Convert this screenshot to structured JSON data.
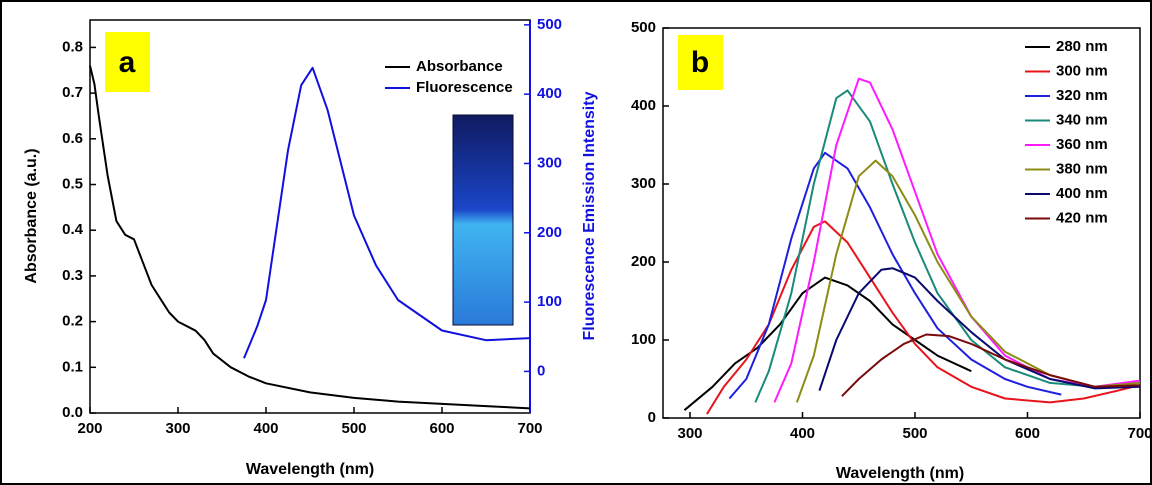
{
  "chart_data": [
    {
      "type": "line",
      "panel_label": "a",
      "xlabel": "Wavelength (nm)",
      "ylabel": "Absorbance (a.u.)",
      "y2label": "Fluorescence Emission Intensity",
      "xlim": [
        200,
        700
      ],
      "xticks": [
        200,
        300,
        400,
        500,
        600,
        700
      ],
      "ylim": [
        0,
        0.86
      ],
      "yticks": [
        {
          "value": 0,
          "label": "0.0"
        },
        0.1,
        0.2,
        0.3,
        0.4,
        0.5,
        0.6,
        0.7,
        0.8
      ],
      "y2lim": [
        -60,
        507
      ],
      "y2ticks": [
        0,
        100,
        200,
        300,
        400,
        500
      ],
      "legend": "upper right",
      "series": [
        {
          "name": "Absorbance",
          "color": "#000000",
          "x": [
            200,
            205,
            210,
            220,
            230,
            240,
            250,
            260,
            270,
            280,
            290,
            300,
            320,
            330,
            340,
            360,
            380,
            400,
            450,
            500,
            550,
            600,
            650,
            700
          ],
          "values": [
            0.76,
            0.72,
            0.65,
            0.52,
            0.42,
            0.39,
            0.38,
            0.33,
            0.28,
            0.25,
            0.22,
            0.2,
            0.18,
            0.16,
            0.13,
            0.1,
            0.08,
            0.065,
            0.045,
            0.033,
            0.025,
            0.02,
            0.015,
            0.01
          ]
        },
        {
          "name": "Fluorescence",
          "color": "#1010e0",
          "axis": "y2",
          "x": [
            375,
            390,
            400,
            425,
            440,
            453,
            470,
            500,
            525,
            550,
            600,
            650,
            700
          ],
          "values": [
            19,
            65,
            103,
            319,
            413,
            438,
            377,
            225,
            153,
            103,
            59,
            45,
            48
          ]
        }
      ]
    },
    {
      "type": "line",
      "panel_label": "b",
      "xlabel": "Wavelength (nm)",
      "xlim": [
        276,
        700
      ],
      "xticks": [
        300,
        400,
        500,
        600,
        700
      ],
      "ylim": [
        0,
        500
      ],
      "yticks": [
        0,
        100,
        200,
        300,
        400,
        500
      ],
      "legend": "upper right",
      "series": [
        {
          "name": "280 nm",
          "color": "#000000",
          "x": [
            295,
            320,
            340,
            360,
            380,
            400,
            420,
            440,
            460,
            480,
            500,
            520,
            550
          ],
          "values": [
            10,
            40,
            70,
            90,
            120,
            160,
            180,
            170,
            150,
            120,
            100,
            80,
            60
          ]
        },
        {
          "name": "300 nm",
          "color": "#e8141b",
          "x": [
            315,
            330,
            350,
            370,
            390,
            410,
            420,
            440,
            460,
            480,
            500,
            520,
            550,
            580,
            620,
            650,
            680,
            700
          ],
          "values": [
            5,
            40,
            75,
            120,
            190,
            245,
            252,
            225,
            180,
            135,
            95,
            65,
            40,
            25,
            20,
            25,
            35,
            42
          ]
        },
        {
          "name": "320 nm",
          "color": "#1f1fe0",
          "x": [
            335,
            350,
            370,
            390,
            410,
            420,
            440,
            460,
            480,
            500,
            520,
            550,
            580,
            600,
            630
          ],
          "values": [
            25,
            50,
            120,
            230,
            320,
            340,
            320,
            270,
            210,
            160,
            115,
            75,
            50,
            40,
            30
          ]
        },
        {
          "name": "340 nm",
          "color": "#1a8a7a",
          "x": [
            358,
            370,
            390,
            410,
            430,
            440,
            460,
            480,
            500,
            520,
            550,
            580,
            620,
            660,
            700
          ],
          "values": [
            20,
            60,
            160,
            300,
            410,
            420,
            380,
            300,
            225,
            160,
            100,
            65,
            45,
            40,
            45
          ]
        },
        {
          "name": "360 nm",
          "color": "#ff1aff",
          "x": [
            375,
            390,
            410,
            430,
            450,
            460,
            480,
            500,
            520,
            550,
            580,
            620,
            660,
            700
          ],
          "values": [
            20,
            70,
            200,
            350,
            435,
            430,
            370,
            290,
            210,
            130,
            80,
            50,
            40,
            48
          ]
        },
        {
          "name": "380 nm",
          "color": "#8c8c14",
          "x": [
            395,
            410,
            430,
            450,
            465,
            480,
            500,
            520,
            550,
            580,
            620,
            660,
            700
          ],
          "values": [
            20,
            80,
            210,
            310,
            330,
            310,
            260,
            200,
            130,
            85,
            55,
            40,
            45
          ]
        },
        {
          "name": "400 nm",
          "color": "#0a0a6e",
          "x": [
            415,
            430,
            450,
            470,
            480,
            500,
            520,
            550,
            580,
            620,
            660,
            700
          ],
          "values": [
            35,
            100,
            160,
            190,
            192,
            180,
            150,
            110,
            75,
            50,
            38,
            40
          ]
        },
        {
          "name": "420 nm",
          "color": "#7a0a0a",
          "x": [
            435,
            450,
            470,
            490,
            510,
            530,
            550,
            580,
            620,
            660,
            700
          ],
          "values": [
            28,
            50,
            75,
            95,
            107,
            105,
            95,
            75,
            55,
            40,
            42
          ]
        }
      ]
    }
  ]
}
